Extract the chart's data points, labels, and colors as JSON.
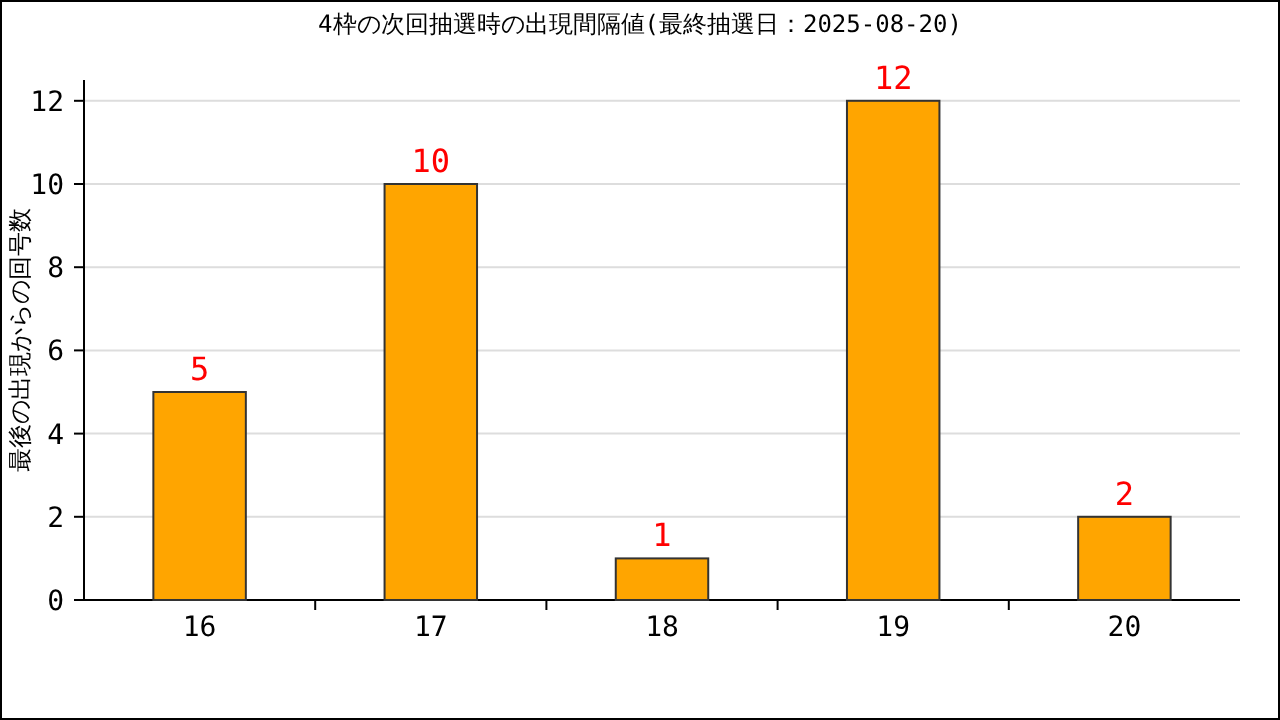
{
  "chart_data": {
    "type": "bar",
    "title": "4枠の次回抽選時の出現間隔値(最終抽選日：2025-08-20)",
    "ylabel": "最後の出現からの回号数",
    "categories": [
      "16",
      "17",
      "18",
      "19",
      "20"
    ],
    "values": [
      5,
      10,
      1,
      12,
      2
    ],
    "color": "#ffa500",
    "ylim": [
      0,
      12.5
    ],
    "yticks": [
      0,
      2,
      4,
      6,
      8,
      10,
      12
    ],
    "grid": "y",
    "data_labels": true
  }
}
